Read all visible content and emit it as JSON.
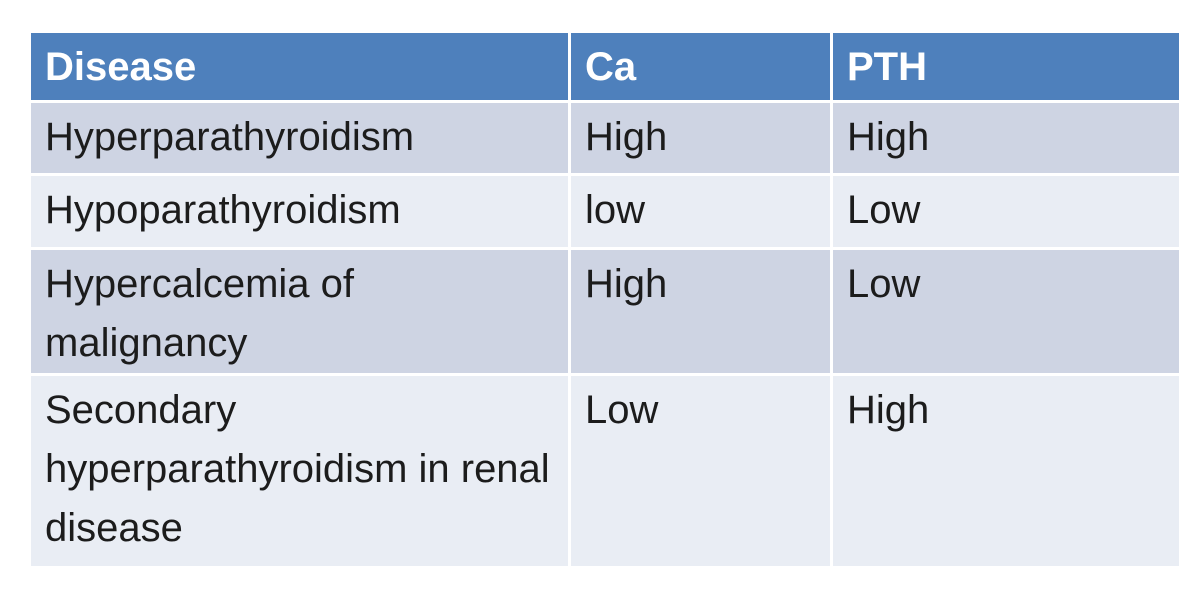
{
  "page": {
    "background": "#ffffff"
  },
  "colors": {
    "header-bg": "#4e80bc",
    "header-text": "#ffffff",
    "row-dark": "#ced4e3",
    "row-light": "#e9edf4",
    "body-text": "#1c1c1c"
  },
  "table": {
    "columns": [
      "Disease",
      "Ca",
      "PTH"
    ],
    "rows": [
      [
        "Hyperparathyroidism",
        "High",
        "High"
      ],
      [
        "Hypoparathyroidism",
        "low",
        "Low"
      ],
      [
        "Hypercalcemia of malignancy",
        "High",
        "Low"
      ],
      [
        "Secondary hyperparathyroidism in renal disease",
        "Low",
        "High"
      ]
    ]
  },
  "chart_data": {
    "type": "table",
    "columns": [
      "Disease",
      "Ca",
      "PTH"
    ],
    "rows": [
      {
        "disease": "Hyperparathyroidism",
        "ca": "High",
        "pth": "High"
      },
      {
        "disease": "Hypoparathyroidism",
        "ca": "low",
        "pth": "Low"
      },
      {
        "disease": "Hypercalcemia of malignancy",
        "ca": "High",
        "pth": "Low"
      },
      {
        "disease": "Secondary hyperparathyroidism in renal disease",
        "ca": "Low",
        "pth": "High"
      }
    ]
  }
}
